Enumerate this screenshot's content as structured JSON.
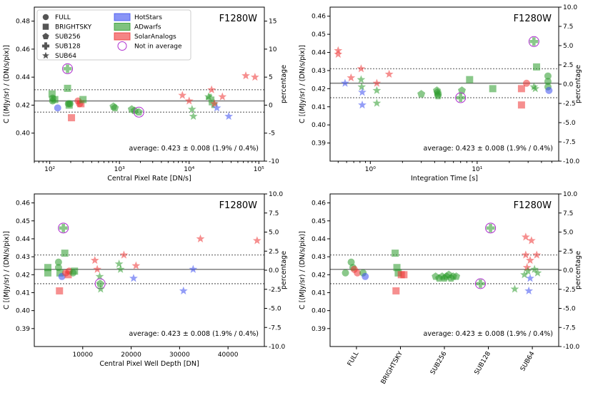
{
  "colors": {
    "HotStars": "#3b4cf0",
    "ADwarfs": "#2a9a2a",
    "SolarAnalogs": "#ee3333",
    "not_in_average": "#b030d0",
    "reference": "#7f7f7f"
  },
  "legend": {
    "markers": [
      "FULL",
      "BRIGHTSKY",
      "SUB256",
      "SUB128",
      "SUB64"
    ],
    "categories": [
      "HotStars",
      "ADwarfs",
      "SolarAnalogs"
    ],
    "not_in_average": "Not in average"
  },
  "chart_data": [
    {
      "type": "scatter",
      "title": "F1280W",
      "xlabel": "Central Pixel Rate [DN/s]",
      "ylabel": "C [(MJy/sr) / (DN/s/pix)]",
      "y2label": "percentage",
      "xscale": "log",
      "xlim": [
        60,
        120000
      ],
      "ylim": [
        0.38,
        0.49
      ],
      "y2lim": [
        -10,
        17.5
      ],
      "x_ticks": [
        {
          "v": 100,
          "label": "10²"
        },
        {
          "v": 1000,
          "label": "10³"
        },
        {
          "v": 10000,
          "label": "10⁴"
        },
        {
          "v": 100000,
          "label": "10⁵"
        }
      ],
      "y_ticks": [
        0.4,
        0.42,
        0.44,
        0.46,
        0.48
      ],
      "y2_ticks": [
        -10,
        -5,
        0,
        5,
        10,
        15
      ],
      "mean": 0.423,
      "band": [
        0.415,
        0.431
      ],
      "average_text": "average: 0.423 ± 0.008 (1.9% / 0.4%)",
      "points": [
        {
          "x": 110,
          "y": 0.425,
          "m": "FULL",
          "c": "ADwarfs"
        },
        {
          "x": 110,
          "y": 0.423,
          "m": "FULL",
          "c": "ADwarfs"
        },
        {
          "x": 130,
          "y": 0.418,
          "m": "FULL",
          "c": "HotStars"
        },
        {
          "x": 185,
          "y": 0.421,
          "m": "FULL",
          "c": "ADwarfs"
        },
        {
          "x": 195,
          "y": 0.421,
          "m": "FULL",
          "c": "ADwarfs"
        },
        {
          "x": 255,
          "y": 0.423,
          "m": "FULL",
          "c": "SolarAnalogs"
        },
        {
          "x": 268,
          "y": 0.421,
          "m": "FULL",
          "c": "SolarAnalogs"
        },
        {
          "x": 108,
          "y": 0.428,
          "m": "BRIGHTSKY",
          "c": "ADwarfs"
        },
        {
          "x": 118,
          "y": 0.424,
          "m": "BRIGHTSKY",
          "c": "ADwarfs"
        },
        {
          "x": 180,
          "y": 0.432,
          "m": "BRIGHTSKY",
          "c": "ADwarfs"
        },
        {
          "x": 190,
          "y": 0.42,
          "m": "BRIGHTSKY",
          "c": "ADwarfs"
        },
        {
          "x": 205,
          "y": 0.411,
          "m": "BRIGHTSKY",
          "c": "SolarAnalogs"
        },
        {
          "x": 280,
          "y": 0.421,
          "m": "BRIGHTSKY",
          "c": "SolarAnalogs"
        },
        {
          "x": 300,
          "y": 0.424,
          "m": "BRIGHTSKY",
          "c": "ADwarfs"
        },
        {
          "x": 820,
          "y": 0.419,
          "m": "SUB256",
          "c": "ADwarfs"
        },
        {
          "x": 860,
          "y": 0.418,
          "m": "SUB256",
          "c": "ADwarfs"
        },
        {
          "x": 1500,
          "y": 0.417,
          "m": "SUB256",
          "c": "ADwarfs"
        },
        {
          "x": 1650,
          "y": 0.416,
          "m": "SUB256",
          "c": "ADwarfs"
        },
        {
          "x": 1900,
          "y": 0.415,
          "m": "SUB256",
          "c": "ADwarfs",
          "circled": true
        },
        {
          "x": 180,
          "y": 0.446,
          "m": "SUB128",
          "c": "ADwarfs",
          "circled": true
        },
        {
          "x": 20000,
          "y": 0.425,
          "m": "SUB128",
          "c": "ADwarfs"
        },
        {
          "x": 22000,
          "y": 0.421,
          "m": "SUB128",
          "c": "ADwarfs"
        },
        {
          "x": 8000,
          "y": 0.427,
          "m": "SUB64",
          "c": "SolarAnalogs"
        },
        {
          "x": 10000,
          "y": 0.423,
          "m": "SUB64",
          "c": "SolarAnalogs"
        },
        {
          "x": 11000,
          "y": 0.417,
          "m": "SUB64",
          "c": "ADwarfs"
        },
        {
          "x": 11500,
          "y": 0.412,
          "m": "SUB64",
          "c": "ADwarfs"
        },
        {
          "x": 19000,
          "y": 0.426,
          "m": "SUB64",
          "c": "ADwarfs"
        },
        {
          "x": 21000,
          "y": 0.431,
          "m": "SUB64",
          "c": "SolarAnalogs"
        },
        {
          "x": 23000,
          "y": 0.421,
          "m": "SUB64",
          "c": "SolarAnalogs"
        },
        {
          "x": 25000,
          "y": 0.418,
          "m": "SUB64",
          "c": "HotStars"
        },
        {
          "x": 30000,
          "y": 0.426,
          "m": "SUB64",
          "c": "SolarAnalogs"
        },
        {
          "x": 37000,
          "y": 0.412,
          "m": "SUB64",
          "c": "HotStars"
        },
        {
          "x": 65000,
          "y": 0.441,
          "m": "SUB64",
          "c": "SolarAnalogs"
        },
        {
          "x": 88000,
          "y": 0.44,
          "m": "SUB64",
          "c": "SolarAnalogs"
        }
      ]
    },
    {
      "type": "scatter",
      "title": "F1280W",
      "xlabel": "Integration Time [s]",
      "ylabel": "C [(MJy/sr) / (DN/s/pix)]",
      "y2label": "percentage",
      "xscale": "log",
      "xlim": [
        0.42,
        58
      ],
      "ylim": [
        0.38,
        0.465
      ],
      "y2lim": [
        -10,
        10
      ],
      "x_ticks": [
        {
          "v": 1,
          "label": "10⁰"
        },
        {
          "v": 10,
          "label": "10¹"
        }
      ],
      "y_ticks": [
        0.39,
        0.4,
        0.41,
        0.42,
        0.43,
        0.44,
        0.45,
        0.46
      ],
      "y2_ticks": [
        -10.0,
        -7.5,
        -5.0,
        -2.5,
        0.0,
        2.5,
        5.0,
        7.5,
        10.0
      ],
      "mean": 0.423,
      "band": [
        0.415,
        0.431
      ],
      "average_text": "average: 0.423 ± 0.008 (1.9% / 0.4%)",
      "points": [
        {
          "x": 0.5,
          "y": 0.441,
          "m": "SUB64",
          "c": "SolarAnalogs"
        },
        {
          "x": 0.5,
          "y": 0.439,
          "m": "SUB64",
          "c": "SolarAnalogs"
        },
        {
          "x": 0.58,
          "y": 0.423,
          "m": "SUB64",
          "c": "HotStars"
        },
        {
          "x": 0.66,
          "y": 0.426,
          "m": "SUB64",
          "c": "SolarAnalogs"
        },
        {
          "x": 0.82,
          "y": 0.431,
          "m": "SUB64",
          "c": "SolarAnalogs"
        },
        {
          "x": 0.82,
          "y": 0.425,
          "m": "SUB64",
          "c": "ADwarfs"
        },
        {
          "x": 0.83,
          "y": 0.421,
          "m": "SUB64",
          "c": "ADwarfs"
        },
        {
          "x": 0.84,
          "y": 0.418,
          "m": "SUB64",
          "c": "HotStars"
        },
        {
          "x": 0.84,
          "y": 0.411,
          "m": "SUB64",
          "c": "HotStars"
        },
        {
          "x": 1.15,
          "y": 0.423,
          "m": "SUB64",
          "c": "SolarAnalogs"
        },
        {
          "x": 1.15,
          "y": 0.419,
          "m": "SUB64",
          "c": "ADwarfs"
        },
        {
          "x": 1.15,
          "y": 0.412,
          "m": "SUB64",
          "c": "ADwarfs"
        },
        {
          "x": 1.5,
          "y": 0.428,
          "m": "SUB64",
          "c": "SolarAnalogs"
        },
        {
          "x": 3.0,
          "y": 0.417,
          "m": "SUB256",
          "c": "ADwarfs"
        },
        {
          "x": 4.2,
          "y": 0.419,
          "m": "SUB256",
          "c": "ADwarfs"
        },
        {
          "x": 4.25,
          "y": 0.418,
          "m": "SUB256",
          "c": "ADwarfs"
        },
        {
          "x": 4.3,
          "y": 0.417,
          "m": "SUB256",
          "c": "ADwarfs"
        },
        {
          "x": 4.3,
          "y": 0.416,
          "m": "SUB256",
          "c": "ADwarfs"
        },
        {
          "x": 7.2,
          "y": 0.419,
          "m": "SUB256",
          "c": "ADwarfs"
        },
        {
          "x": 7.0,
          "y": 0.415,
          "m": "SUB128",
          "c": "ADwarfs",
          "circled": true
        },
        {
          "x": 8.5,
          "y": 0.425,
          "m": "BRIGHTSKY",
          "c": "ADwarfs"
        },
        {
          "x": 14,
          "y": 0.42,
          "m": "BRIGHTSKY",
          "c": "ADwarfs"
        },
        {
          "x": 26,
          "y": 0.42,
          "m": "BRIGHTSKY",
          "c": "SolarAnalogs"
        },
        {
          "x": 26,
          "y": 0.411,
          "m": "BRIGHTSKY",
          "c": "SolarAnalogs"
        },
        {
          "x": 29,
          "y": 0.423,
          "m": "FULL",
          "c": "SolarAnalogs"
        },
        {
          "x": 34,
          "y": 0.446,
          "m": "SUB128",
          "c": "ADwarfs",
          "circled": true
        },
        {
          "x": 36,
          "y": 0.432,
          "m": "BRIGHTSKY",
          "c": "ADwarfs"
        },
        {
          "x": 34,
          "y": 0.421,
          "m": "SUB64",
          "c": "ADwarfs"
        },
        {
          "x": 35,
          "y": 0.42,
          "m": "SUB64",
          "c": "ADwarfs"
        },
        {
          "x": 46,
          "y": 0.427,
          "m": "FULL",
          "c": "ADwarfs"
        },
        {
          "x": 46,
          "y": 0.424,
          "m": "FULL",
          "c": "ADwarfs"
        },
        {
          "x": 46,
          "y": 0.421,
          "m": "FULL",
          "c": "ADwarfs"
        },
        {
          "x": 47,
          "y": 0.419,
          "m": "FULL",
          "c": "HotStars"
        }
      ]
    },
    {
      "type": "scatter",
      "title": "F1280W",
      "xlabel": "Central Pixel Well Depth [DN]",
      "ylabel": "C [(MJy/sr) / (DN/s/pix)]",
      "y2label": "percentage",
      "xscale": "linear",
      "xlim": [
        0,
        47500
      ],
      "ylim": [
        0.38,
        0.465
      ],
      "y2lim": [
        -10,
        10
      ],
      "x_ticks": [
        {
          "v": 10000,
          "label": "10000"
        },
        {
          "v": 20000,
          "label": "20000"
        },
        {
          "v": 30000,
          "label": "30000"
        },
        {
          "v": 40000,
          "label": "40000"
        }
      ],
      "y_ticks": [
        0.39,
        0.4,
        0.41,
        0.42,
        0.43,
        0.44,
        0.45,
        0.46
      ],
      "y2_ticks": [
        -10.0,
        -7.5,
        -5.0,
        -2.5,
        0.0,
        2.5,
        5.0,
        7.5,
        10.0
      ],
      "mean": 0.423,
      "band": [
        0.415,
        0.431
      ],
      "average_text": "average: 0.423 ± 0.008 (1.9% / 0.4%)",
      "points": [
        {
          "x": 2800,
          "y": 0.424,
          "m": "BRIGHTSKY",
          "c": "ADwarfs"
        },
        {
          "x": 2800,
          "y": 0.421,
          "m": "BRIGHTSKY",
          "c": "ADwarfs"
        },
        {
          "x": 5000,
          "y": 0.427,
          "m": "FULL",
          "c": "ADwarfs"
        },
        {
          "x": 5000,
          "y": 0.424,
          "m": "FULL",
          "c": "ADwarfs"
        },
        {
          "x": 5300,
          "y": 0.421,
          "m": "BRIGHTSKY",
          "c": "ADwarfs"
        },
        {
          "x": 5200,
          "y": 0.411,
          "m": "BRIGHTSKY",
          "c": "SolarAnalogs"
        },
        {
          "x": 5700,
          "y": 0.419,
          "m": "FULL",
          "c": "HotStars"
        },
        {
          "x": 6000,
          "y": 0.446,
          "m": "SUB128",
          "c": "ADwarfs",
          "circled": true
        },
        {
          "x": 6300,
          "y": 0.432,
          "m": "BRIGHTSKY",
          "c": "ADwarfs"
        },
        {
          "x": 6500,
          "y": 0.421,
          "m": "FULL",
          "c": "SolarAnalogs"
        },
        {
          "x": 7000,
          "y": 0.42,
          "m": "BRIGHTSKY",
          "c": "SolarAnalogs"
        },
        {
          "x": 7200,
          "y": 0.422,
          "m": "FULL",
          "c": "SolarAnalogs"
        },
        {
          "x": 8000,
          "y": 0.421,
          "m": "FULL",
          "c": "ADwarfs"
        },
        {
          "x": 8300,
          "y": 0.422,
          "m": "BRIGHTSKY",
          "c": "ADwarfs"
        },
        {
          "x": 12500,
          "y": 0.428,
          "m": "SUB64",
          "c": "SolarAnalogs"
        },
        {
          "x": 13000,
          "y": 0.423,
          "m": "SUB64",
          "c": "SolarAnalogs"
        },
        {
          "x": 13500,
          "y": 0.419,
          "m": "SUB64",
          "c": "ADwarfs"
        },
        {
          "x": 13600,
          "y": 0.415,
          "m": "SUB256",
          "c": "ADwarfs",
          "circled": true
        },
        {
          "x": 13700,
          "y": 0.412,
          "m": "SUB64",
          "c": "ADwarfs"
        },
        {
          "x": 17500,
          "y": 0.426,
          "m": "SUB64",
          "c": "ADwarfs"
        },
        {
          "x": 17800,
          "y": 0.423,
          "m": "SUB64",
          "c": "ADwarfs"
        },
        {
          "x": 18500,
          "y": 0.431,
          "m": "SUB64",
          "c": "SolarAnalogs"
        },
        {
          "x": 20500,
          "y": 0.418,
          "m": "SUB64",
          "c": "HotStars"
        },
        {
          "x": 21000,
          "y": 0.425,
          "m": "SUB64",
          "c": "SolarAnalogs"
        },
        {
          "x": 30800,
          "y": 0.411,
          "m": "SUB64",
          "c": "HotStars"
        },
        {
          "x": 32800,
          "y": 0.423,
          "m": "SUB64",
          "c": "HotStars"
        },
        {
          "x": 34300,
          "y": 0.44,
          "m": "SUB64",
          "c": "SolarAnalogs"
        },
        {
          "x": 46000,
          "y": 0.439,
          "m": "SUB64",
          "c": "SolarAnalogs"
        }
      ]
    },
    {
      "type": "scatter",
      "title": "F1280W",
      "xlabel": "",
      "ylabel": "C [(MJy/sr) / (DN/s/pix)]",
      "y2label": "percentage",
      "xscale": "category",
      "categories": [
        "FULL",
        "BRIGHTSKY",
        "SUB256",
        "SUB128",
        "SUB64"
      ],
      "xlim": [
        -0.6,
        4.6
      ],
      "ylim": [
        0.38,
        0.465
      ],
      "y2lim": [
        -10,
        10
      ],
      "y_ticks": [
        0.39,
        0.4,
        0.41,
        0.42,
        0.43,
        0.44,
        0.45,
        0.46
      ],
      "y2_ticks": [
        -10.0,
        -7.5,
        -5.0,
        -2.5,
        0.0,
        2.5,
        5.0,
        7.5,
        10.0
      ],
      "mean": 0.423,
      "band": [
        0.415,
        0.431
      ],
      "average_text": "average: 0.423 ± 0.008 (1.9% / 0.4%)",
      "points": [
        {
          "x": -0.25,
          "y": 0.421,
          "m": "FULL",
          "c": "ADwarfs"
        },
        {
          "x": -0.12,
          "y": 0.427,
          "m": "FULL",
          "c": "ADwarfs"
        },
        {
          "x": -0.08,
          "y": 0.424,
          "m": "FULL",
          "c": "ADwarfs"
        },
        {
          "x": -0.05,
          "y": 0.423,
          "m": "FULL",
          "c": "SolarAnalogs"
        },
        {
          "x": 0.02,
          "y": 0.421,
          "m": "FULL",
          "c": "SolarAnalogs"
        },
        {
          "x": 0.15,
          "y": 0.421,
          "m": "FULL",
          "c": "ADwarfs"
        },
        {
          "x": 0.2,
          "y": 0.419,
          "m": "FULL",
          "c": "HotStars"
        },
        {
          "x": 0.88,
          "y": 0.432,
          "m": "BRIGHTSKY",
          "c": "ADwarfs"
        },
        {
          "x": 0.92,
          "y": 0.424,
          "m": "BRIGHTSKY",
          "c": "ADwarfs"
        },
        {
          "x": 0.95,
          "y": 0.421,
          "m": "BRIGHTSKY",
          "c": "ADwarfs"
        },
        {
          "x": 1.02,
          "y": 0.42,
          "m": "BRIGHTSKY",
          "c": "SolarAnalogs"
        },
        {
          "x": 1.08,
          "y": 0.42,
          "m": "BRIGHTSKY",
          "c": "SolarAnalogs"
        },
        {
          "x": 0.9,
          "y": 0.411,
          "m": "BRIGHTSKY",
          "c": "SolarAnalogs"
        },
        {
          "x": 1.8,
          "y": 0.419,
          "m": "SUB256",
          "c": "ADwarfs"
        },
        {
          "x": 1.88,
          "y": 0.418,
          "m": "SUB256",
          "c": "ADwarfs"
        },
        {
          "x": 1.95,
          "y": 0.419,
          "m": "SUB256",
          "c": "ADwarfs"
        },
        {
          "x": 2.0,
          "y": 0.418,
          "m": "SUB256",
          "c": "ADwarfs"
        },
        {
          "x": 2.05,
          "y": 0.419,
          "m": "SUB256",
          "c": "ADwarfs"
        },
        {
          "x": 2.1,
          "y": 0.42,
          "m": "SUB256",
          "c": "ADwarfs"
        },
        {
          "x": 2.15,
          "y": 0.418,
          "m": "SUB256",
          "c": "ADwarfs"
        },
        {
          "x": 2.2,
          "y": 0.419,
          "m": "SUB256",
          "c": "ADwarfs"
        },
        {
          "x": 2.27,
          "y": 0.419,
          "m": "SUB256",
          "c": "ADwarfs"
        },
        {
          "x": 2.82,
          "y": 0.415,
          "m": "SUB128",
          "c": "ADwarfs",
          "circled": true
        },
        {
          "x": 3.05,
          "y": 0.446,
          "m": "SUB128",
          "c": "ADwarfs",
          "circled": true
        },
        {
          "x": 3.6,
          "y": 0.412,
          "m": "SUB64",
          "c": "ADwarfs"
        },
        {
          "x": 3.85,
          "y": 0.441,
          "m": "SUB64",
          "c": "SolarAnalogs"
        },
        {
          "x": 3.98,
          "y": 0.439,
          "m": "SUB64",
          "c": "SolarAnalogs"
        },
        {
          "x": 3.85,
          "y": 0.431,
          "m": "SUB64",
          "c": "SolarAnalogs"
        },
        {
          "x": 3.95,
          "y": 0.428,
          "m": "SUB64",
          "c": "SolarAnalogs"
        },
        {
          "x": 3.88,
          "y": 0.424,
          "m": "SUB64",
          "c": "SolarAnalogs"
        },
        {
          "x": 3.9,
          "y": 0.422,
          "m": "SUB64",
          "c": "ADwarfs"
        },
        {
          "x": 3.82,
          "y": 0.42,
          "m": "SUB64",
          "c": "ADwarfs"
        },
        {
          "x": 4.1,
          "y": 0.431,
          "m": "SUB64",
          "c": "SolarAnalogs"
        },
        {
          "x": 4.05,
          "y": 0.423,
          "m": "SUB64",
          "c": "ADwarfs"
        },
        {
          "x": 4.12,
          "y": 0.421,
          "m": "SUB64",
          "c": "ADwarfs"
        },
        {
          "x": 3.95,
          "y": 0.418,
          "m": "SUB64",
          "c": "HotStars"
        },
        {
          "x": 3.92,
          "y": 0.411,
          "m": "SUB64",
          "c": "HotStars"
        }
      ]
    }
  ]
}
